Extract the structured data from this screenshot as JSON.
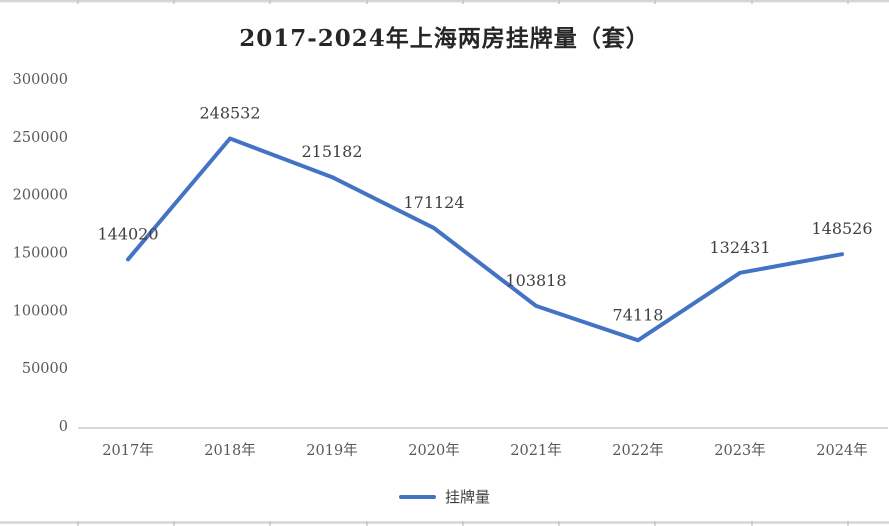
{
  "chart_data": {
    "type": "line",
    "title": "2017-2024年上海两房挂牌量（套）",
    "categories": [
      "2017年",
      "2018年",
      "2019年",
      "2020年",
      "2021年",
      "2022年",
      "2023年",
      "2024年"
    ],
    "series": [
      {
        "name": "挂牌量",
        "values": [
          144020,
          248532,
          215182,
          171124,
          103818,
          74118,
          132431,
          148526
        ],
        "color": "#4472C4"
      }
    ],
    "data_labels_shown": true,
    "y_axis": {
      "min": 0,
      "max": 300000,
      "step": 50000,
      "tick_labels": [
        "0",
        "50000",
        "100000",
        "150000",
        "200000",
        "250000",
        "300000"
      ]
    },
    "x_axis": {
      "tick_labels": [
        "2017年",
        "2018年",
        "2019年",
        "2020年",
        "2021年",
        "2022年",
        "2023年",
        "2024年"
      ]
    },
    "legend": {
      "position": "bottom",
      "entries": [
        "挂牌量"
      ]
    },
    "grid": false
  },
  "colors": {
    "accent_line": "#4472C4",
    "title_text": "#262626",
    "data_label_text": "#404040",
    "axis_tick_text": "#595959",
    "axis_line": "#D9D9D9",
    "spreadsheet_grid": "#D6D6D6",
    "spreadsheet_grid_tick": "#C6C6C6",
    "background": "#FFFFFF"
  }
}
